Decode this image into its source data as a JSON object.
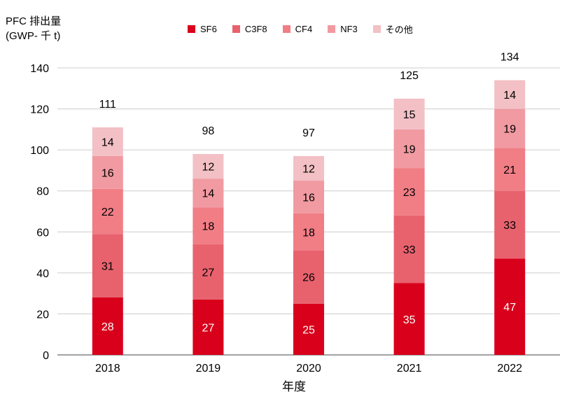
{
  "chart_data": {
    "type": "bar",
    "stacked": true,
    "ylabel_line1": "PFC 排出量",
    "ylabel_line2": "(GWP- 千 t)",
    "xlabel": "年度",
    "categories": [
      "2018",
      "2019",
      "2020",
      "2021",
      "2022"
    ],
    "ylim": [
      0,
      140
    ],
    "yticks": [
      0,
      20,
      40,
      60,
      80,
      100,
      120,
      140
    ],
    "grid": true,
    "legend_position": "top-center",
    "series": [
      {
        "name": "SF6",
        "color": "#d9001b",
        "label_color": "#ffffff",
        "values": [
          28,
          27,
          25,
          35,
          47
        ]
      },
      {
        "name": "C3F8",
        "color": "#e8626e",
        "label_color": "#000000",
        "values": [
          31,
          27,
          26,
          33,
          33
        ]
      },
      {
        "name": "CF4",
        "color": "#f17d85",
        "label_color": "#000000",
        "values": [
          22,
          18,
          18,
          23,
          21
        ]
      },
      {
        "name": "NF3",
        "color": "#f19aa1",
        "label_color": "#000000",
        "values": [
          16,
          14,
          16,
          19,
          19
        ]
      },
      {
        "name": "その他",
        "color": "#f2c0c5",
        "label_color": "#000000",
        "values": [
          14,
          12,
          12,
          15,
          14
        ]
      }
    ],
    "totals": [
      111,
      98,
      97,
      125,
      134
    ]
  }
}
